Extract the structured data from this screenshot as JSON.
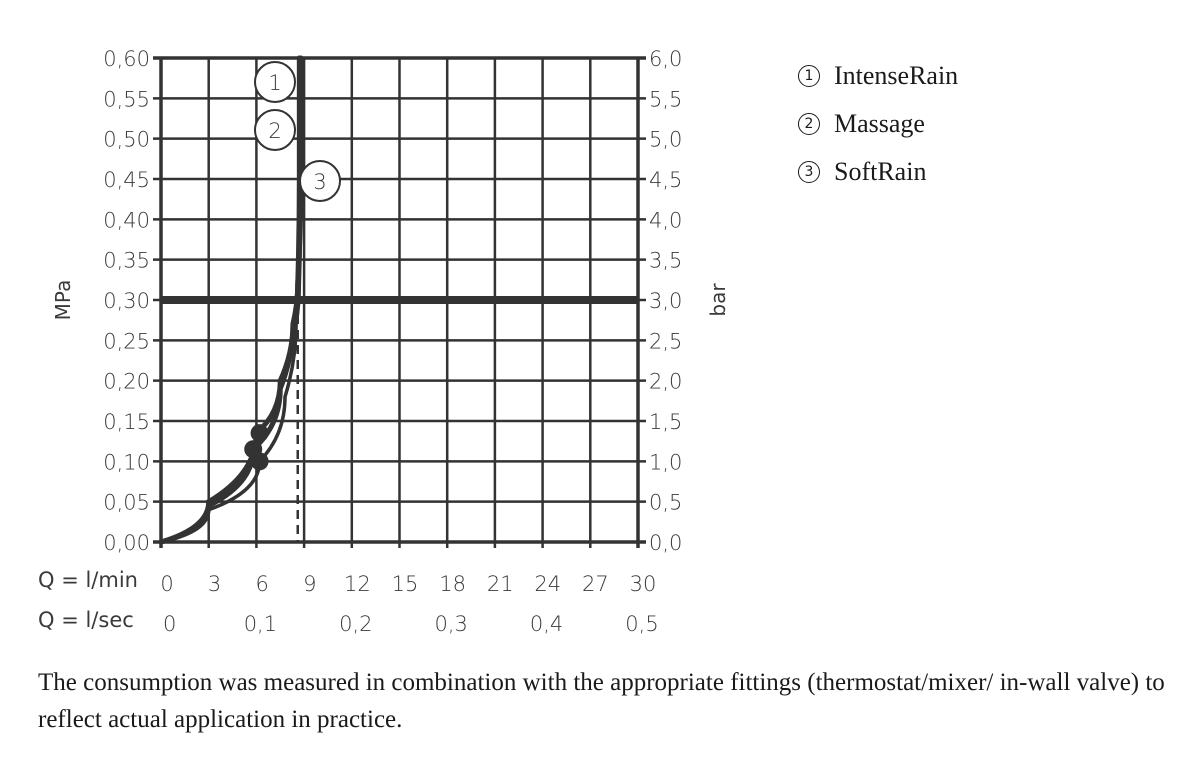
{
  "chart_data": {
    "type": "line",
    "title": "",
    "xlabel": "Q = l/min",
    "xlabel_secondary": "Q = l/sec",
    "ylabel": "MPa",
    "ylabel_right": "bar",
    "xlim": [
      0,
      30
    ],
    "ylim": [
      0,
      0.6
    ],
    "grid": true,
    "x_ticks_lmin": [
      "0",
      "3",
      "6",
      "9",
      "12",
      "15",
      "18",
      "21",
      "24",
      "27",
      "30"
    ],
    "x_ticks_lsec": [
      "0",
      "0,1",
      "0,2",
      "0,3",
      "0,4",
      "0,5"
    ],
    "y_ticks_mpa": [
      "0,00",
      "0,05",
      "0,10",
      "0,15",
      "0,20",
      "0,25",
      "0,30",
      "0,35",
      "0,40",
      "0,45",
      "0,50",
      "0,55",
      "0,60"
    ],
    "y_ticks_bar": [
      "0,0",
      "0,5",
      "1,0",
      "1,5",
      "2,0",
      "2,5",
      "3,0",
      "3,5",
      "4,0",
      "4,5",
      "5,0",
      "5,5",
      "6,0"
    ],
    "reference_line_mpa": 0.3,
    "dashed_line_lmin": 8.6,
    "series": [
      {
        "name": "IntenseRain",
        "label": "1",
        "x": [
          0,
          3,
          6,
          7.5,
          8.3,
          8.6,
          8.8,
          8.8
        ],
        "y": [
          0,
          0.05,
          0.135,
          0.2,
          0.27,
          0.32,
          0.45,
          0.6
        ],
        "marker": {
          "x": 6.2,
          "y": 0.135
        }
      },
      {
        "name": "Massage",
        "label": "2",
        "x": [
          0,
          3,
          5.8,
          7.5,
          8.3,
          8.6,
          8.7,
          8.7
        ],
        "y": [
          0,
          0.045,
          0.115,
          0.19,
          0.27,
          0.32,
          0.45,
          0.6
        ],
        "marker": {
          "x": 5.8,
          "y": 0.115
        }
      },
      {
        "name": "SoftRain",
        "label": "3",
        "x": [
          0,
          3,
          6.2,
          7.8,
          8.5,
          8.7,
          8.8,
          8.8
        ],
        "y": [
          0,
          0.04,
          0.1,
          0.18,
          0.27,
          0.32,
          0.45,
          0.6
        ],
        "marker": {
          "x": 6.2,
          "y": 0.1
        }
      }
    ],
    "legend_position": "right"
  },
  "legend": [
    {
      "num": "1",
      "label": "IntenseRain"
    },
    {
      "num": "2",
      "label": "Massage"
    },
    {
      "num": "3",
      "label": "SoftRain"
    }
  ],
  "axis": {
    "y_unit": "MPa",
    "y_unit_right": "bar",
    "q_lmin_label": "Q = l/min",
    "q_lsec_label": "Q = l/sec"
  },
  "note": "The consumption was measured in combination with the appropriate fittings (thermostat/mixer/ in-wall valve) to reflect actual application in practice."
}
